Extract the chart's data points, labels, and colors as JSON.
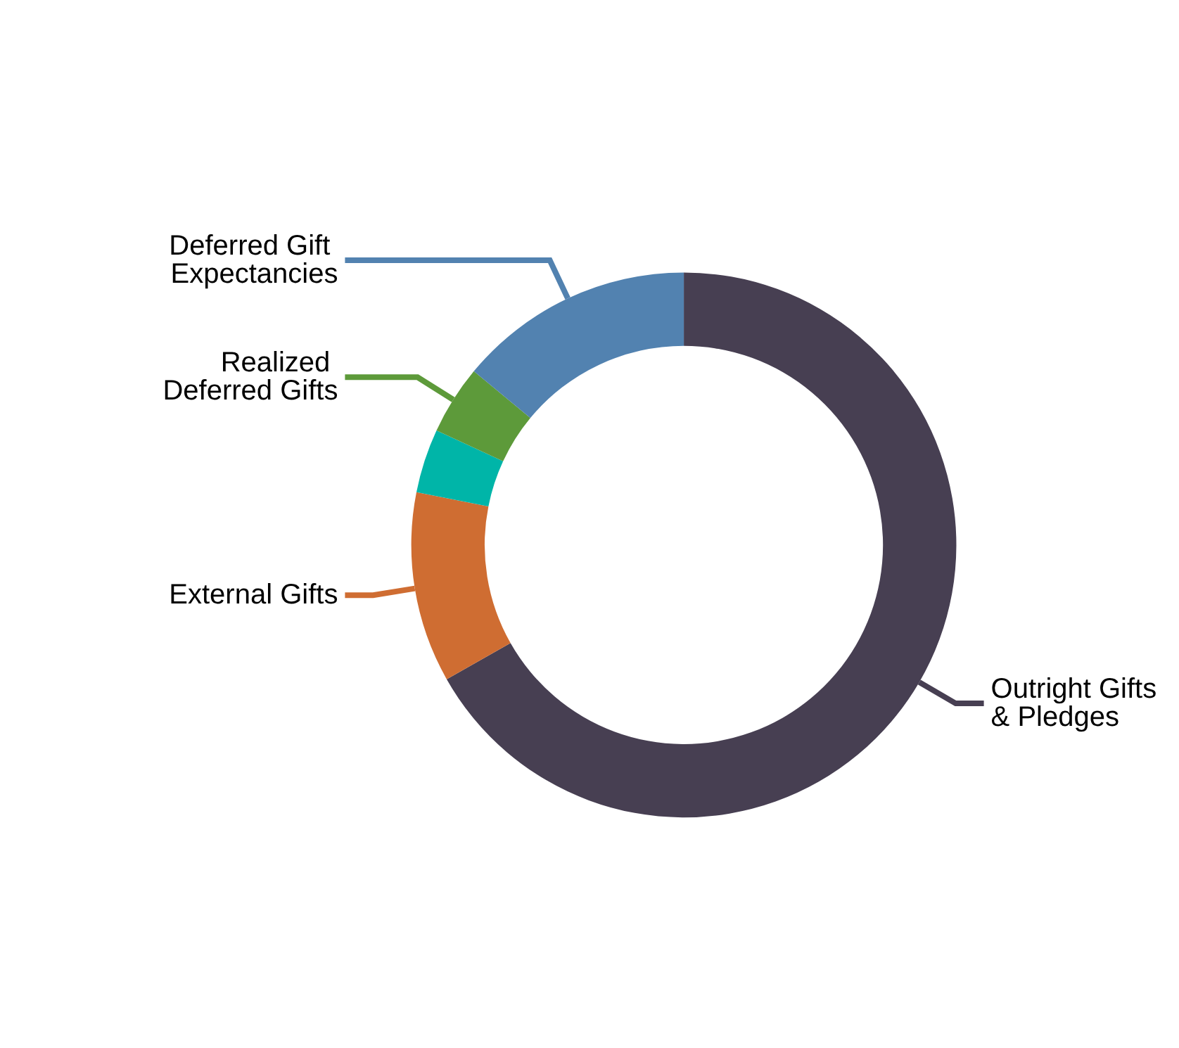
{
  "chart_data": {
    "type": "donut",
    "categories": [
      "Outright Gifts & Pledges",
      "External Gifts",
      null,
      "Realized Deferred Gifts",
      "Deferred Gift Expectancies"
    ],
    "values": [
      66.8,
      11.3,
      3.8,
      4.1,
      14.0
    ],
    "colors": [
      "#473f52",
      "#cf6d32",
      "#00b5a8",
      "#5d9a3a",
      "#5282b0"
    ],
    "legend": false
  }
}
